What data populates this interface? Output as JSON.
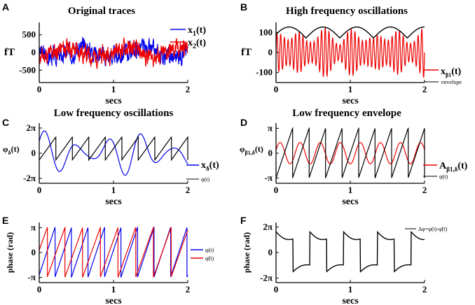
{
  "chart_data": [
    {
      "panel": "A",
      "type": "line",
      "title": "Original traces",
      "xlabel": "secs",
      "ylabel": "fT",
      "xlim": [
        0,
        2
      ],
      "ylim": [
        -850,
        850
      ],
      "xticks": [
        "0",
        "1",
        "2"
      ],
      "yticks": [
        "500",
        "0",
        "-500"
      ],
      "series": [
        {
          "name": "x1(t)",
          "name_main": "x",
          "name_sub": "1",
          "name_tail": "(t)",
          "color": "#0000ee",
          "signal": "noise",
          "amp": 320,
          "seed": 3
        },
        {
          "name": "x2(t)",
          "name_main": "x",
          "name_sub": "2",
          "name_tail": "(t)",
          "color": "#ee0000",
          "signal": "noise",
          "amp": 320,
          "seed": 11
        }
      ]
    },
    {
      "panel": "B",
      "type": "line",
      "title": "High frequency oscillations",
      "xlabel": "secs",
      "ylabel": "fT",
      "xlim": [
        0,
        2
      ],
      "ylim": [
        -150,
        150
      ],
      "xticks": [
        "0",
        "1",
        "2"
      ],
      "yticks": [
        "100",
        "0",
        "-100"
      ],
      "series": [
        {
          "name": "xβ1(t)",
          "name_main": "x",
          "name_sub": "β1",
          "name_tail": "(t)",
          "color": "#ee0000",
          "signal": "beta"
        },
        {
          "name": "envelope",
          "color": "#000000",
          "signal": "envelope"
        }
      ]
    },
    {
      "panel": "C",
      "type": "line",
      "title": "Low frequency oscillations",
      "xlabel": "secs",
      "ylabel": "φδ(t)",
      "ylabel_main": "φ",
      "ylabel_sub": "δ",
      "ylabel_tail": "(t)",
      "xlim": [
        0,
        2
      ],
      "ylim": [
        -7.5,
        7.5
      ],
      "xticks": [
        "0",
        "1",
        "2"
      ],
      "yticks": [
        "2π",
        "0",
        "-2π"
      ],
      "series": [
        {
          "name": "xδ(t)",
          "name_main": "x",
          "name_sub": "δ",
          "name_tail": "(t)",
          "color": "#0000ee",
          "signal": "delta"
        },
        {
          "name": "φ(t)",
          "color": "#000000",
          "signal": "saw",
          "freq": 4.5,
          "lo": -1.7,
          "hi": 4.0
        }
      ]
    },
    {
      "panel": "D",
      "type": "line",
      "title": "Low frequency envelope",
      "xlabel": "secs",
      "ylabel": "φβ1,δ(t)",
      "ylabel_main": "φ",
      "ylabel_sub": "β1,δ",
      "ylabel_tail": "(t)",
      "xlim": [
        0,
        2
      ],
      "ylim": [
        -3.8,
        3.8
      ],
      "xticks": [
        "0",
        "1",
        "2"
      ],
      "yticks": [
        "π",
        "0",
        "-π"
      ],
      "series": [
        {
          "name": "Aβ1,δ(t)",
          "name_main": "A",
          "name_sub": "β1,δ",
          "name_tail": "(t)",
          "color": "#ee0000",
          "signal": "sine",
          "freq": 3.7,
          "amp": 1.35
        },
        {
          "name": "φ(t)",
          "color": "#000000",
          "signal": "saw",
          "freq": 4.5,
          "lo": -3.14,
          "hi": 3.14
        }
      ]
    },
    {
      "panel": "E",
      "type": "line",
      "title": "",
      "xlabel": "secs",
      "ylabel": "phase (rad)",
      "xlim": [
        0,
        2
      ],
      "ylim": [
        -3.8,
        3.8
      ],
      "xticks": [
        "0",
        "1",
        "2"
      ],
      "yticks": [
        "π",
        "0",
        "-π"
      ],
      "series": [
        {
          "name": "φ(t)",
          "color": "#0000ee",
          "signal": "saw",
          "freq": 4.5,
          "lo": -3.14,
          "hi": 3.14,
          "phase": 0.05
        },
        {
          "name": "φ̃(t)",
          "color": "#ee0000",
          "signal": "saw",
          "freq": 4.2,
          "lo": -3.14,
          "hi": 3.14,
          "phase": 0.55
        }
      ]
    },
    {
      "panel": "F",
      "type": "line",
      "title": "",
      "xlabel": "secs",
      "ylabel": "phase (rad)",
      "xlim": [
        0,
        2
      ],
      "ylim": [
        -7.4,
        7.4
      ],
      "xticks": [
        "0",
        "1",
        "2"
      ],
      "yticks": [
        "2π",
        "0",
        "-2π"
      ],
      "series": [
        {
          "name": "Δφ=φ(t)-φ̃(t)",
          "color": "#000000",
          "signal": "diff"
        }
      ]
    }
  ]
}
